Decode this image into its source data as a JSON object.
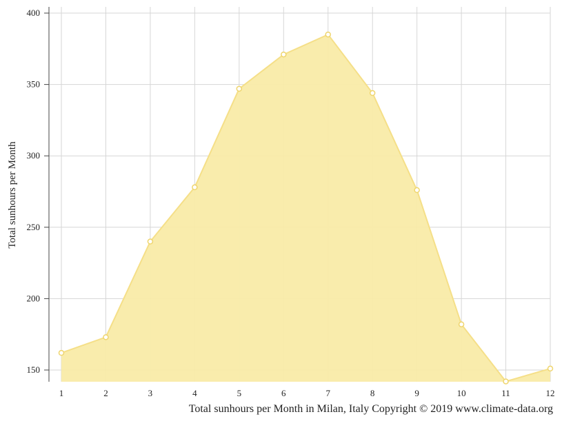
{
  "chart_data": {
    "type": "area",
    "title": "",
    "xlabel": "",
    "ylabel": "Total sunhours per Month",
    "caption": "Total sunhours per Month in Milan, Italy Copyright © 2019 www.climate-data.org",
    "x": [
      1,
      2,
      3,
      4,
      5,
      6,
      7,
      8,
      9,
      10,
      11,
      12
    ],
    "x_tick_labels": [
      "1",
      "2",
      "3",
      "4",
      "5",
      "6",
      "7",
      "8",
      "9",
      "10",
      "11",
      "12"
    ],
    "y_ticks": [
      150,
      200,
      250,
      300,
      350,
      400
    ],
    "y_tick_labels": [
      "150",
      "200",
      "250",
      "300",
      "350",
      "400"
    ],
    "ylim": [
      142,
      405
    ],
    "xlim": [
      1,
      12
    ],
    "grid": true,
    "series": [
      {
        "values": [
          162,
          173,
          240,
          278,
          347,
          371,
          385,
          344,
          276,
          182,
          142,
          151
        ],
        "fill_color": "#f9eba8",
        "line_color": "#f5df88",
        "marker_color": "#efd56d"
      }
    ]
  }
}
